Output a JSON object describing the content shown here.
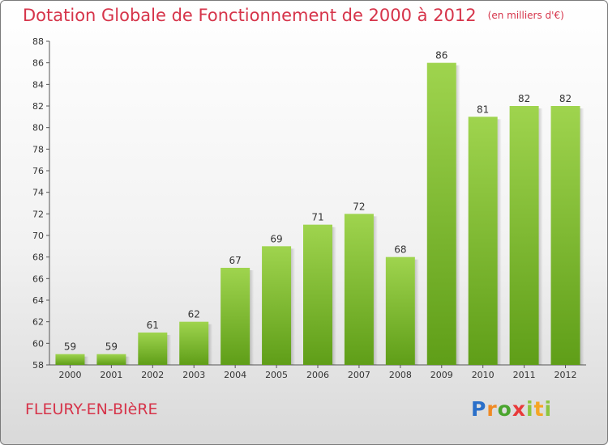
{
  "title": "Dotation Globale de Fonctionnement de 2000 à 2012",
  "unit": "(en milliers d'€)",
  "commune": "FLEURY-EN-BIèRE",
  "logo": "Proxiti",
  "colors": {
    "title": "#d6344a",
    "bar_top": "#9fd44e",
    "bar_bottom": "#5f9e18"
  },
  "chart_data": {
    "type": "bar",
    "title": "Dotation Globale de Fonctionnement de 2000 à 2012",
    "subtitle": "(en milliers d'€)",
    "categories": [
      "2000",
      "2001",
      "2002",
      "2003",
      "2004",
      "2005",
      "2006",
      "2007",
      "2008",
      "2009",
      "2010",
      "2011",
      "2012"
    ],
    "values": [
      59,
      59,
      61,
      62,
      67,
      69,
      71,
      72,
      68,
      86,
      81,
      82,
      82
    ],
    "ylim": [
      58,
      88
    ],
    "yticks": [
      58,
      60,
      62,
      64,
      66,
      68,
      70,
      72,
      74,
      76,
      78,
      80,
      82,
      84,
      86,
      88
    ],
    "grid": false,
    "xlabel": "",
    "ylabel": ""
  }
}
